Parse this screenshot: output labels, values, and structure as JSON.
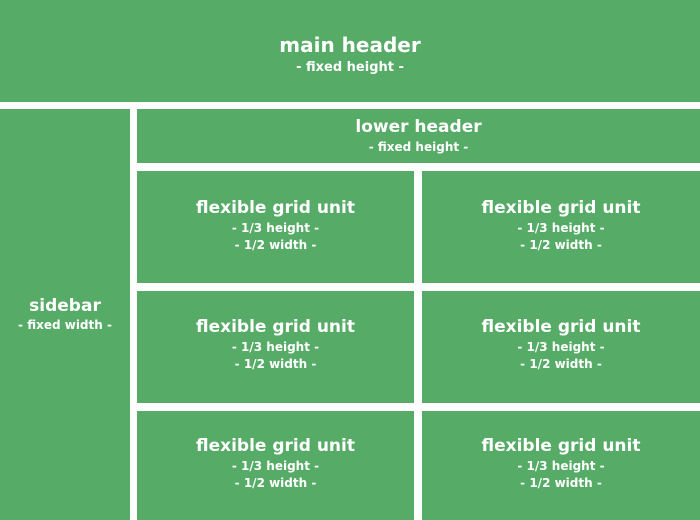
{
  "main_header": {
    "title": "main header",
    "subtitle": "- fixed height -"
  },
  "sidebar": {
    "title": "sidebar",
    "subtitle": "- fixed width -"
  },
  "lower_header": {
    "title": "lower header",
    "subtitle": "- fixed height -"
  },
  "grid_units": [
    {
      "title": "flexible grid unit",
      "height_note": "- 1/3 height -",
      "width_note": "- 1/2 width -"
    },
    {
      "title": "flexible grid unit",
      "height_note": "- 1/3 height -",
      "width_note": "- 1/2 width -"
    },
    {
      "title": "flexible grid unit",
      "height_note": "- 1/3 height -",
      "width_note": "- 1/2 width -"
    },
    {
      "title": "flexible grid unit",
      "height_note": "- 1/3 height -",
      "width_note": "- 1/2 width -"
    },
    {
      "title": "flexible grid unit",
      "height_note": "- 1/3 height -",
      "width_note": "- 1/2 width -"
    },
    {
      "title": "flexible grid unit",
      "height_note": "- 1/3 height -",
      "width_note": "- 1/2 width -"
    }
  ],
  "colors": {
    "block": "#56ab67",
    "text": "#ffffff",
    "gutter": "#ffffff"
  }
}
